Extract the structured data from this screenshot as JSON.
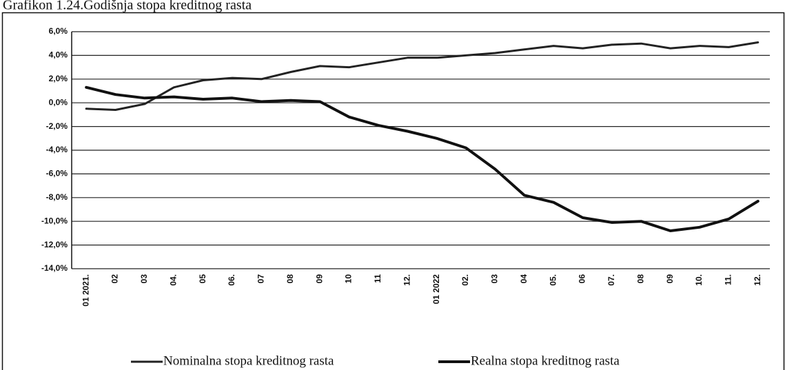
{
  "chart_data": {
    "type": "line",
    "title": "Grafikon 1.24.Godišnja stopa kreditnog rasta",
    "categories": [
      "01 2021.",
      "02",
      "03",
      "04.",
      "05",
      "06.",
      "07",
      "08",
      "09",
      "10",
      "11",
      "12.",
      "01 2022",
      "02.",
      "03",
      "04",
      "05.",
      "06",
      "07.",
      "08",
      "09",
      "10.",
      "11.",
      "12."
    ],
    "series": [
      {
        "name": "Nominalna stopa kreditnog rasta",
        "color": "#222222",
        "values": [
          -0.5,
          -0.6,
          -0.1,
          1.3,
          1.9,
          2.1,
          2.0,
          2.6,
          3.1,
          3.0,
          3.4,
          3.8,
          3.8,
          4.0,
          4.2,
          4.5,
          4.8,
          4.6,
          4.9,
          5.0,
          4.6,
          4.8,
          4.7,
          5.1
        ]
      },
      {
        "name": "Realna stopa kreditnog rasta",
        "color": "#111111",
        "values": [
          1.3,
          0.7,
          0.4,
          0.5,
          0.3,
          0.4,
          0.1,
          0.2,
          0.1,
          -1.2,
          -1.9,
          -2.4,
          -3.0,
          -3.8,
          -5.6,
          -7.8,
          -8.4,
          -9.7,
          -10.1,
          -10.0,
          -10.8,
          -10.5,
          -9.8,
          -8.3
        ]
      }
    ],
    "ylim": [
      -14,
      6
    ],
    "yticks": [
      {
        "value": 6,
        "label": "6,0%"
      },
      {
        "value": 4,
        "label": "4,0%"
      },
      {
        "value": 2,
        "label": "2,0%"
      },
      {
        "value": 0,
        "label": "0,0%"
      },
      {
        "value": -2,
        "label": "-2,0%"
      },
      {
        "value": -4,
        "label": "-4,0%"
      },
      {
        "value": -6,
        "label": "-6,0%"
      },
      {
        "value": -8,
        "label": "-8,0%"
      },
      {
        "value": -10,
        "label": "-10,0%"
      },
      {
        "value": -12,
        "label": "-12,0%"
      },
      {
        "value": -14,
        "label": "-14,0%"
      }
    ],
    "grid": true
  }
}
